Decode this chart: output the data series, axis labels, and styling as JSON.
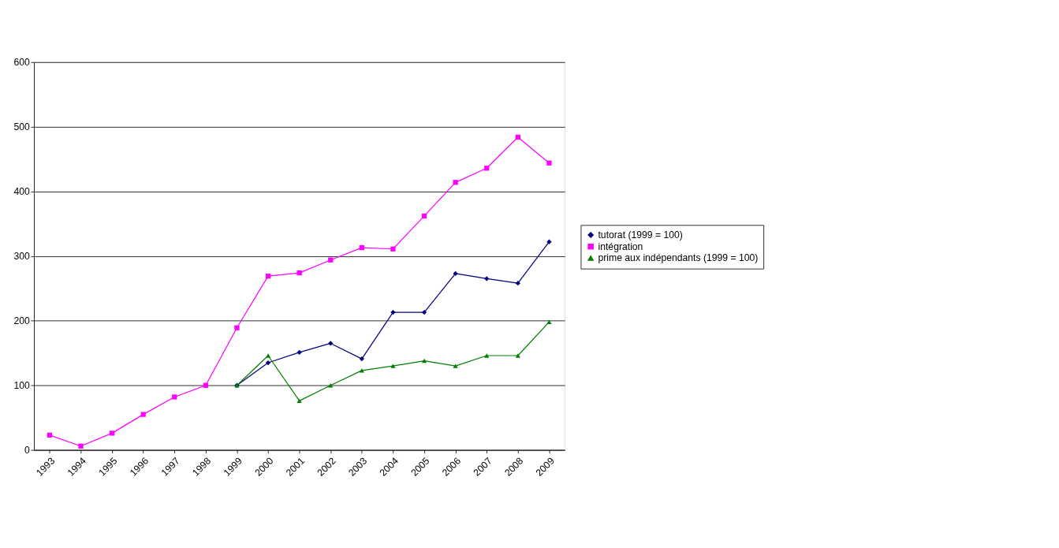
{
  "chart_data": {
    "type": "line",
    "categories": [
      "1993",
      "1994",
      "1995",
      "1996",
      "1997",
      "1998",
      "1999",
      "2000",
      "2001",
      "2002",
      "2003",
      "2004",
      "2005",
      "2006",
      "2007",
      "2008",
      "2009"
    ],
    "series": [
      {
        "name": "tutorat (1999 = 100)",
        "color": "#000080",
        "marker": "diamond",
        "values": [
          null,
          null,
          null,
          null,
          null,
          null,
          100,
          135,
          151,
          165,
          141,
          213,
          213,
          273,
          265,
          258,
          322
        ]
      },
      {
        "name": "intégration",
        "color": "#ff00ff",
        "marker": "square",
        "values": [
          23,
          6,
          26,
          55,
          82,
          100,
          189,
          269,
          274,
          294,
          313,
          311,
          362,
          414,
          436,
          484,
          444
        ]
      },
      {
        "name": "prime aux indépendants (1999 = 100)",
        "color": "#008000",
        "marker": "triangle",
        "values": [
          null,
          null,
          null,
          null,
          null,
          null,
          100,
          146,
          76,
          100,
          123,
          130,
          138,
          130,
          146,
          146,
          198
        ]
      }
    ],
    "ylim": [
      0,
      600
    ],
    "yticks": [
      0,
      100,
      200,
      300,
      400,
      500,
      600
    ],
    "grid": "y",
    "legend": "right",
    "line_style": "solid"
  }
}
